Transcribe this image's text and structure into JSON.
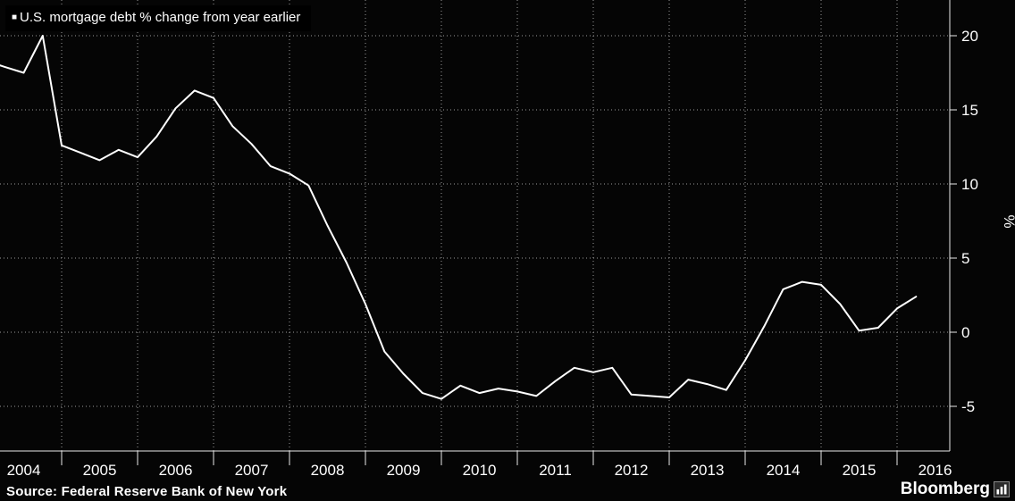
{
  "legend": {
    "marker": "■",
    "label": "U.S. mortgage debt % change from year earlier"
  },
  "source": "Source: Federal Reserve Bank of New York",
  "brand": {
    "name": "Bloomberg"
  },
  "colors": {
    "background": "#000000",
    "line": "#ffffff",
    "grid": "#9a9a9a",
    "text": "#ffffff"
  },
  "chart_data": {
    "type": "line",
    "title": "U.S. mortgage debt % change from year earlier",
    "xlabel": "",
    "ylabel": "%",
    "x_unit": "quarterly",
    "x_start": 2004.0,
    "x_step": 0.25,
    "values": [
      18.3,
      17.9,
      17.5,
      20.0,
      12.6,
      12.1,
      11.6,
      12.3,
      11.8,
      13.2,
      15.1,
      16.3,
      15.8,
      13.9,
      12.7,
      11.2,
      10.7,
      9.9,
      7.2,
      4.7,
      1.9,
      -1.3,
      -2.8,
      -4.1,
      -4.5,
      -3.6,
      -4.1,
      -3.8,
      -4.0,
      -4.3,
      -3.3,
      -2.4,
      -2.7,
      -2.4,
      -4.2,
      -4.3,
      -4.4,
      -3.2,
      -3.5,
      -3.9,
      -1.9,
      0.4,
      2.9,
      3.4,
      3.2,
      1.9,
      0.1,
      0.3,
      1.6,
      2.4
    ],
    "y_ticks": [
      20,
      15,
      10,
      5,
      0,
      -5
    ],
    "x_tick_years": [
      2004,
      2005,
      2006,
      2007,
      2008,
      2009,
      2010,
      2011,
      2012,
      2013,
      2014,
      2015,
      2016
    ],
    "ylim": [
      -8.0,
      22.4
    ],
    "xlim": [
      2004.19,
      2016.69
    ],
    "grid": "dotted",
    "legend_position": "top-left",
    "y_axis_position": "right"
  }
}
